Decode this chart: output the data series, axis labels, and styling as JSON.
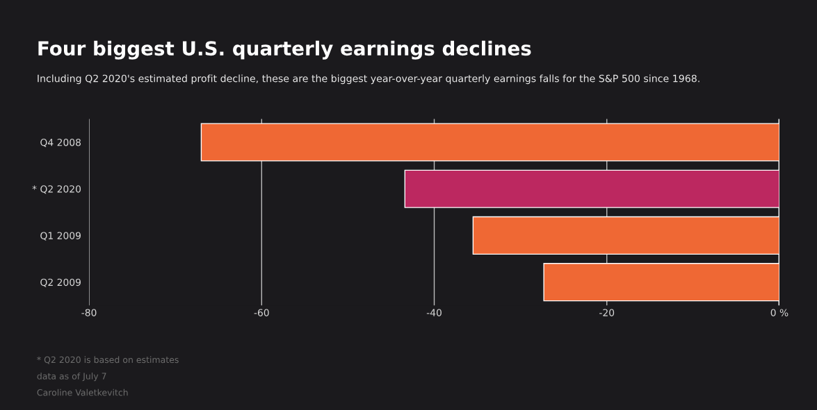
{
  "chart_data": {
    "type": "bar",
    "orientation": "horizontal",
    "title": "Four biggest U.S. quarterly earnings declines",
    "subtitle": "Including Q2 2020's estimated profit decline, these are the biggest year-over-year quarterly earnings falls for the S&P 500 since 1968.",
    "categories": [
      "Q4 2008",
      "* Q2 2020",
      "Q1 2009",
      "Q2 2009"
    ],
    "values": [
      -67.0,
      -43.4,
      -35.5,
      -27.3
    ],
    "colors": [
      "#ef6834",
      "#bc2860",
      "#ef6834",
      "#ef6834"
    ],
    "xlim": [
      -80,
      0
    ],
    "xticks": [
      -80,
      -60,
      -40,
      -20,
      {
        "value": 0,
        "label": "0 %"
      }
    ],
    "grid": "x",
    "annotations": [
      "* Q2 2020 is based on estimates",
      "data as of July 7",
      "Caroline Valetkevitch"
    ]
  }
}
